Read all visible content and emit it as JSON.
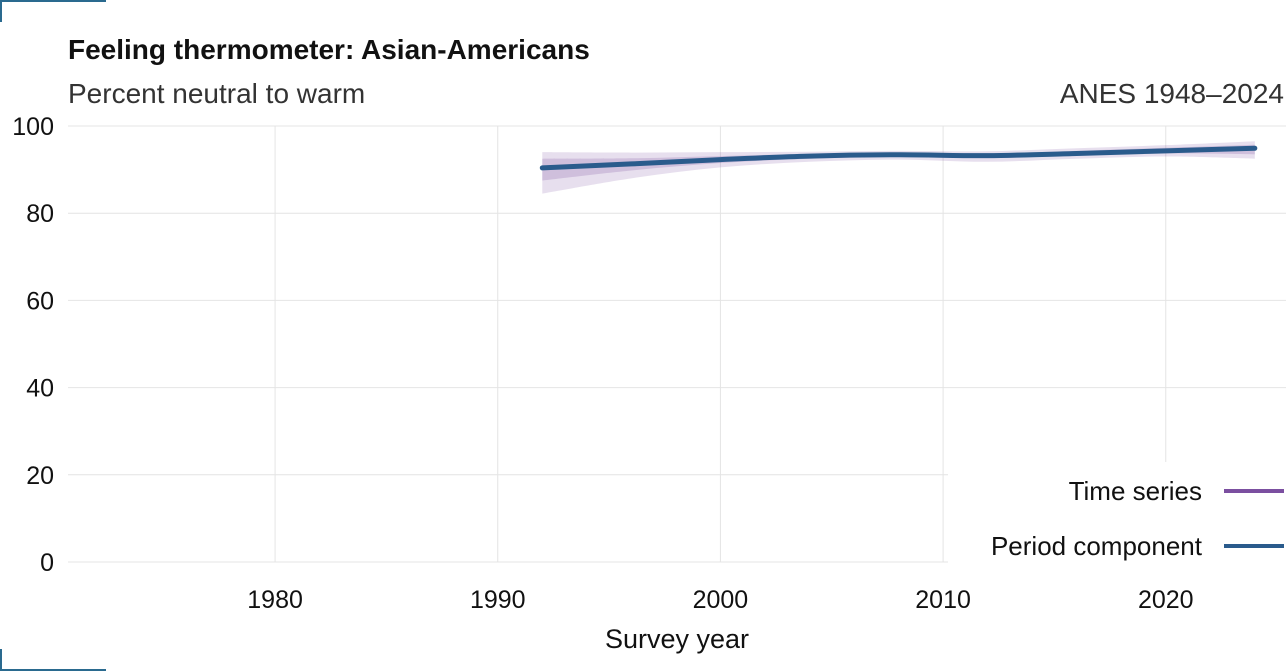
{
  "header": {
    "title": "Feeling thermometer: Asian-Americans",
    "subtitle": "Percent neutral to warm",
    "source": "ANES 1948–2024"
  },
  "chart_data": {
    "type": "line",
    "title": "Feeling thermometer: Asian-Americans",
    "subtitle": "Percent neutral to warm",
    "xlabel": "Survey year",
    "ylabel": "",
    "xlim": [
      1970.7,
      2025.4
    ],
    "ylim": [
      0,
      100
    ],
    "x_ticks": [
      1980,
      1990,
      2000,
      2010,
      2020
    ],
    "y_ticks": [
      0,
      20,
      40,
      60,
      80,
      100
    ],
    "grid": true,
    "legend_placement": "bottom-right",
    "series": [
      {
        "name": "Time series",
        "color": "#7b4fa0",
        "x": [
          1992,
          1996,
          2000,
          2004,
          2008,
          2012,
          2016,
          2020,
          2024
        ],
        "y": [
          90.5,
          91.3,
          92.3,
          93.1,
          93.4,
          93.2,
          93.8,
          94.4,
          95.0
        ],
        "band_outer_lower": [
          84.5,
          88.0,
          90.5,
          91.8,
          92.3,
          91.8,
          92.5,
          93.0,
          92.5
        ],
        "band_outer_upper": [
          94.0,
          93.9,
          94.0,
          94.1,
          94.3,
          94.2,
          94.9,
          95.6,
          96.5
        ],
        "band_inner_lower": [
          87.5,
          89.8,
          91.5,
          92.5,
          92.9,
          92.6,
          93.2,
          93.7,
          93.5
        ],
        "band_inner_upper": [
          92.5,
          92.6,
          93.1,
          93.6,
          93.9,
          93.7,
          94.3,
          95.0,
          95.7
        ]
      },
      {
        "name": "Period component",
        "color": "#2a5b8c",
        "x": [
          1992,
          1996,
          2000,
          2004,
          2008,
          2012,
          2016,
          2020,
          2024
        ],
        "y": [
          90.4,
          91.3,
          92.3,
          93.1,
          93.4,
          93.2,
          93.7,
          94.3,
          94.9
        ]
      }
    ]
  }
}
